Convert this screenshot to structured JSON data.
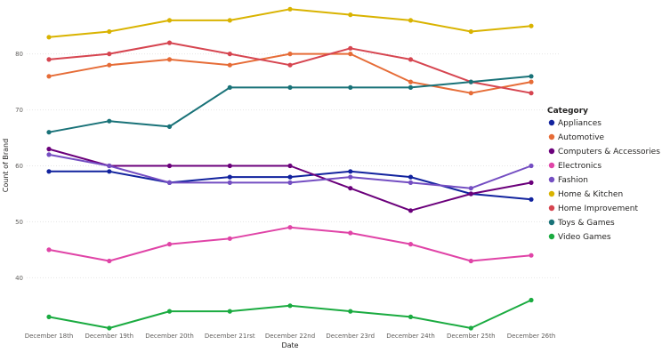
{
  "chart_data": {
    "type": "line",
    "xlabel": "Date",
    "ylabel": "Count of Brand",
    "categories": [
      "December 18th",
      "December 19th",
      "December 20th",
      "December 21rst",
      "December 22nd",
      "December 23rd",
      "December 24th",
      "December 25th",
      "December 26th"
    ],
    "ylim": [
      31,
      89
    ],
    "yticks": [
      40,
      50,
      60,
      70,
      80
    ],
    "grid": true,
    "legend": {
      "title": "Category",
      "position": "right"
    },
    "series": [
      {
        "name": "Appliances",
        "color": "#12239e",
        "values": [
          59,
          59,
          57,
          58,
          58,
          59,
          58,
          55,
          54
        ]
      },
      {
        "name": "Automotive",
        "color": "#e66c37",
        "values": [
          76,
          78,
          79,
          78,
          80,
          80,
          75,
          73,
          75
        ]
      },
      {
        "name": "Computers & Accessories",
        "color": "#6b007b",
        "values": [
          63,
          60,
          60,
          60,
          60,
          56,
          52,
          55,
          57
        ]
      },
      {
        "name": "Electronics",
        "color": "#e044a7",
        "values": [
          45,
          43,
          46,
          47,
          49,
          48,
          46,
          43,
          44
        ]
      },
      {
        "name": "Fashion",
        "color": "#744ec2",
        "values": [
          62,
          60,
          57,
          57,
          57,
          58,
          57,
          56,
          60
        ]
      },
      {
        "name": "Home & Kitchen",
        "color": "#d9b300",
        "values": [
          83,
          84,
          86,
          86,
          88,
          87,
          86,
          84,
          85
        ]
      },
      {
        "name": "Home Improvement",
        "color": "#d64550",
        "values": [
          79,
          80,
          82,
          80,
          78,
          81,
          79,
          75,
          73
        ]
      },
      {
        "name": "Toys & Games",
        "color": "#197278",
        "values": [
          66,
          68,
          67,
          74,
          74,
          74,
          74,
          75,
          76
        ]
      },
      {
        "name": "Video Games",
        "color": "#1aab40",
        "values": [
          33,
          31,
          34,
          34,
          35,
          34,
          33,
          31,
          36
        ]
      }
    ]
  }
}
